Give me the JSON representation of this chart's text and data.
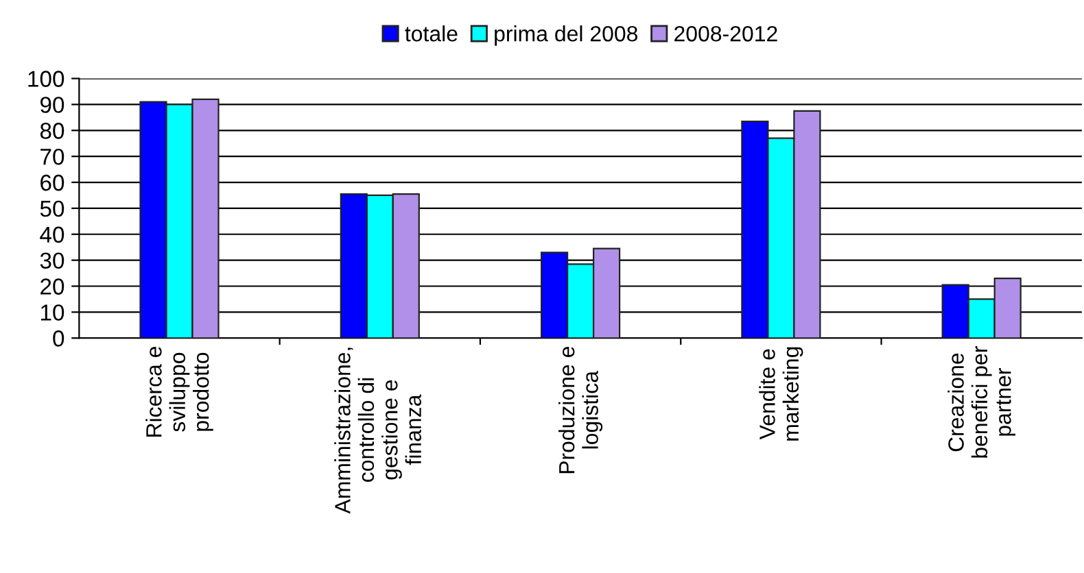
{
  "chart_data": {
    "type": "bar",
    "categories": [
      "Ricerca e\nsviluppo\nprodotto",
      "Amministrazione,\ncontrollo di\ngestione e\nfinanza",
      "Produzione e\nlogistica",
      "Vendite e\nmarketing",
      "Creazione\nbenefici per\npartner"
    ],
    "series": [
      {
        "name": "totale",
        "color": "#0000ff",
        "values": [
          91,
          55.5,
          33,
          83.5,
          20.5
        ]
      },
      {
        "name": "prima del 2008",
        "color": "#00ffff",
        "values": [
          90,
          55,
          28.5,
          77,
          15
        ]
      },
      {
        "name": "2008-2012",
        "color": "#b090e8",
        "values": [
          92,
          55.5,
          34.5,
          87.5,
          23
        ]
      }
    ],
    "ylim": [
      0,
      100
    ],
    "yticks": [
      0,
      10,
      20,
      30,
      40,
      50,
      60,
      70,
      80,
      90,
      100
    ],
    "grid": "y",
    "legend": "top"
  }
}
